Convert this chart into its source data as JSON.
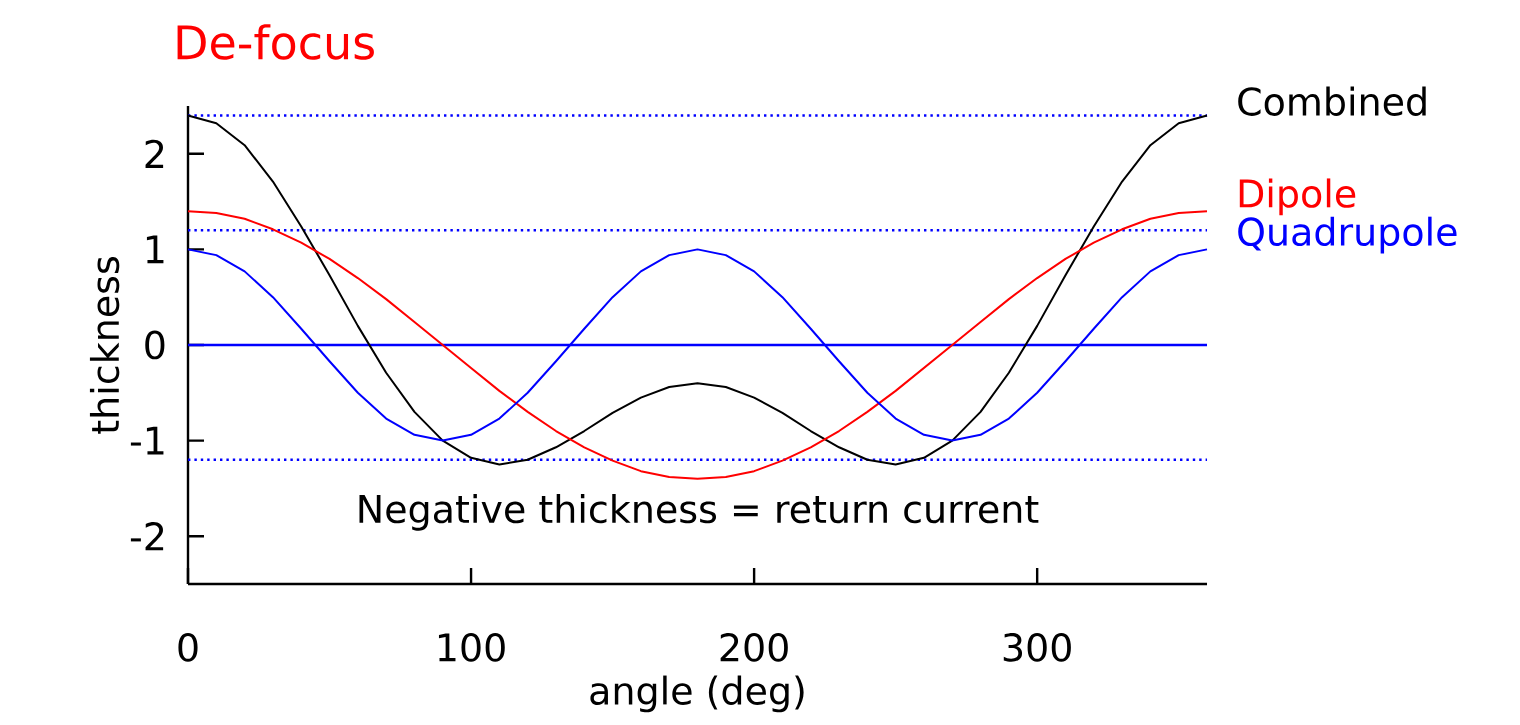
{
  "chart_data": {
    "type": "line",
    "title": "De-focus",
    "xlabel": "angle (deg)",
    "ylabel": "thickness",
    "x": [
      0,
      10,
      20,
      30,
      40,
      50,
      60,
      70,
      80,
      90,
      100,
      110,
      120,
      130,
      140,
      150,
      160,
      170,
      180,
      190,
      200,
      210,
      220,
      230,
      240,
      250,
      260,
      270,
      280,
      290,
      300,
      310,
      320,
      330,
      340,
      350,
      360
    ],
    "series": [
      {
        "name": "Combined",
        "color": "#000000",
        "values": [
          2.4,
          2.32,
          2.09,
          1.71,
          1.24,
          0.73,
          0.2,
          -0.29,
          -0.7,
          -1.0,
          -1.18,
          -1.25,
          -1.2,
          -1.07,
          -0.9,
          -0.71,
          -0.55,
          -0.44,
          -0.4,
          -0.44,
          -0.55,
          -0.71,
          -0.9,
          -1.07,
          -1.2,
          -1.25,
          -1.18,
          -1.0,
          -0.7,
          -0.29,
          0.2,
          0.73,
          1.24,
          1.71,
          2.09,
          2.32,
          2.4
        ]
      },
      {
        "name": "Dipole",
        "color": "#ff0000",
        "values": [
          1.4,
          1.38,
          1.32,
          1.21,
          1.07,
          0.9,
          0.7,
          0.48,
          0.24,
          0,
          -0.24,
          -0.48,
          -0.7,
          -0.9,
          -1.07,
          -1.21,
          -1.32,
          -1.38,
          -1.4,
          -1.38,
          -1.32,
          -1.21,
          -1.07,
          -0.9,
          -0.7,
          -0.48,
          -0.24,
          0,
          0.24,
          0.48,
          0.7,
          0.9,
          1.07,
          1.21,
          1.32,
          1.38,
          1.4
        ]
      },
      {
        "name": "Quadrupole",
        "color": "#0000ff",
        "values": [
          1,
          0.94,
          0.77,
          0.5,
          0.17,
          -0.17,
          -0.5,
          -0.77,
          -0.94,
          -1,
          -0.94,
          -0.77,
          -0.5,
          -0.17,
          0.17,
          0.5,
          0.77,
          0.94,
          1,
          0.94,
          0.77,
          0.5,
          0.17,
          -0.17,
          -0.5,
          -0.77,
          -0.94,
          -1,
          -0.94,
          -0.77,
          -0.5,
          -0.17,
          0.17,
          0.5,
          0.77,
          0.94,
          1
        ]
      }
    ],
    "xlim": [
      0,
      360
    ],
    "ylim": [
      -2.5,
      2.5
    ],
    "xticks": [
      0,
      100,
      200,
      300
    ],
    "yticks": [
      -2,
      -1,
      0,
      1,
      2
    ],
    "ref_lines": [
      {
        "axis": "y",
        "value": 2.4,
        "color": "#0000ff",
        "line_style": "dotted"
      },
      {
        "axis": "y",
        "value": 1.2,
        "color": "#0000ff",
        "line_style": "dotted"
      },
      {
        "axis": "y",
        "value": 0,
        "color": "#0000ff",
        "line_style": "solid"
      },
      {
        "axis": "y",
        "value": -1.2,
        "color": "#0000ff",
        "line_style": "dotted"
      }
    ],
    "annotations": [
      "Negative thickness = return current"
    ]
  }
}
